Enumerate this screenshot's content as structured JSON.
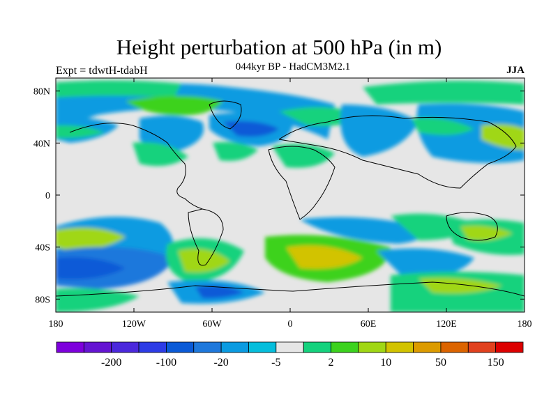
{
  "header": {
    "title": "Height perturbation at 500 hPa (in m)",
    "subtitle": "044kyr BP - HadCM3M2.1",
    "left_label": "Expt = tdwtH-tdabH",
    "right_label": "JJA"
  },
  "map": {
    "lat_ticks": [
      "80N",
      "40N",
      "0",
      "40S",
      "80S"
    ],
    "lon_ticks": [
      "180",
      "120W",
      "60W",
      "0",
      "60E",
      "120E",
      "180"
    ]
  },
  "colorbar": {
    "colors": [
      "#7d00dc",
      "#6414d2",
      "#4b28dc",
      "#2d3ce6",
      "#0a5ad7",
      "#1e78dc",
      "#0a9be1",
      "#05bedc",
      "#e6e6e6",
      "#14d27d",
      "#3cd21e",
      "#a0d714",
      "#d2c300",
      "#dc9b00",
      "#dc6400",
      "#e1411e",
      "#dc0000"
    ],
    "labels": [
      "-200",
      "-100",
      "-20",
      "-5",
      "2",
      "10",
      "50",
      "150"
    ]
  }
}
